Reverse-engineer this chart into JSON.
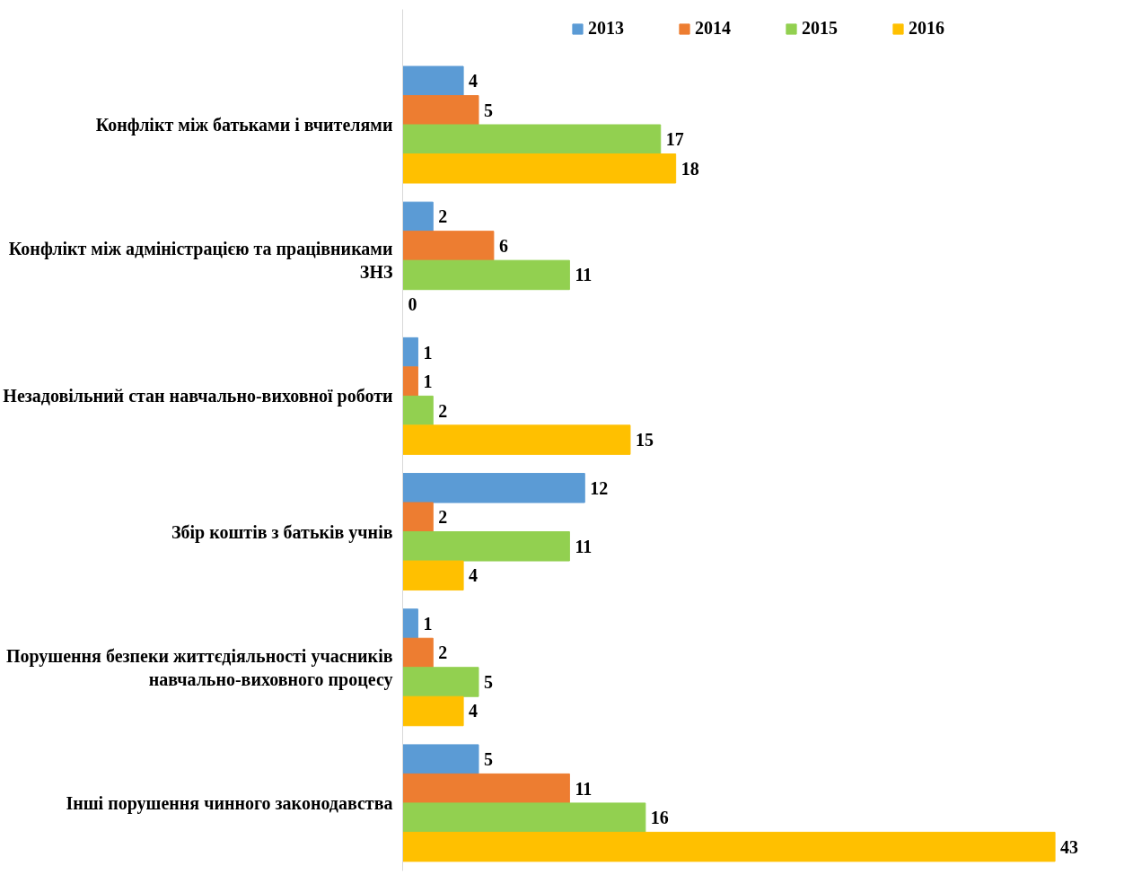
{
  "chart_data": {
    "type": "bar",
    "orientation": "horizontal",
    "data_labels": true,
    "legend": "top",
    "grid": false,
    "categories": [
      "Конфлікт між батьками і вчителями",
      "Конфлікт між адміністрацією та працівниками ЗНЗ",
      "Незадовільний стан навчально-виховної роботи",
      "Збір коштів з батьків учнів",
      "Порушення безпеки життєдіяльності учасників навчально-виховного процесу",
      "Інші порушення чинного законодавства"
    ],
    "series": [
      {
        "name": "2013",
        "color": "#5b9bd5",
        "values": [
          4,
          2,
          1,
          12,
          1,
          5
        ]
      },
      {
        "name": "2014",
        "color": "#ed7d31",
        "values": [
          5,
          6,
          1,
          2,
          2,
          11
        ]
      },
      {
        "name": "2015",
        "color": "#92d050",
        "values": [
          17,
          11,
          2,
          11,
          5,
          16
        ]
      },
      {
        "name": "2016",
        "color": "#ffc000",
        "values": [
          18,
          0,
          15,
          4,
          4,
          43
        ]
      }
    ]
  }
}
